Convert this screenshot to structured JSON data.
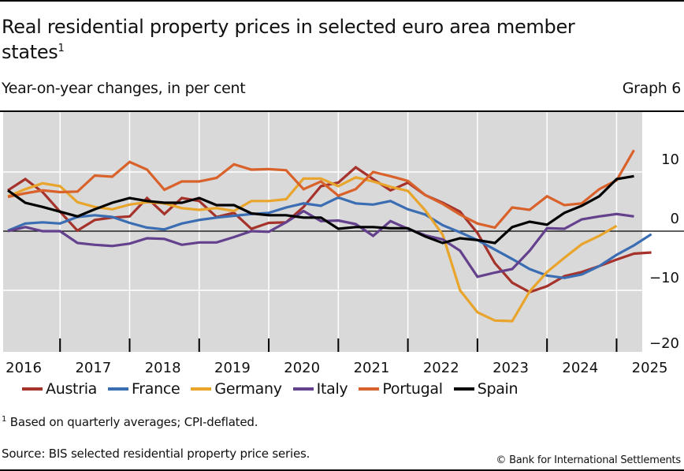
{
  "header": {
    "title": "Real residential property prices in selected euro area member states",
    "title_footnote_marker": "1",
    "subtitle": "Year-on-year changes, in per cent",
    "graph_number": "Graph 6"
  },
  "footer": {
    "footnote_marker": "1",
    "footnote": "Based on quarterly averages; CPI-deflated.",
    "source": "Source: BIS selected residential property price series.",
    "copyright": "© Bank for International Settlements"
  },
  "chart_data": {
    "type": "line",
    "title": "Real residential property prices in selected euro area member states",
    "ylabel": "Year-on-year changes, in per cent",
    "xlabel": "",
    "frequency": "quarterly",
    "x_start": "2016-Q1",
    "x_end": "2025-Q1",
    "x_tick_labels": [
      "2016",
      "2017",
      "2018",
      "2019",
      "2020",
      "2021",
      "2022",
      "2023",
      "2024",
      "2025"
    ],
    "xlim": [
      2016,
      2025.5
    ],
    "y_ticks": [
      10,
      0,
      -10,
      -20
    ],
    "y_tick_labels": [
      "10",
      "0",
      "−10",
      "−20"
    ],
    "ylim": [
      -20,
      20
    ],
    "y_axis_side": "right",
    "grid": true,
    "zero_line": true,
    "background": "#d9d9d9",
    "legend_position": "bottom",
    "series": [
      {
        "name": "Austria",
        "color": "#a5332b",
        "values": [
          6.9,
          8.8,
          6.6,
          3.3,
          0.1,
          1.9,
          2.3,
          2.5,
          5.6,
          2.9,
          5.6,
          5.1,
          2.4,
          3.1,
          0.4,
          1.4,
          1.5,
          4.1,
          7.6,
          8.2,
          10.8,
          8.8,
          6.9,
          8.2,
          6.1,
          4.8,
          3.3,
          -0.3,
          -5.4,
          -8.7,
          -10.3,
          -9.3,
          -7.6,
          -6.9,
          -5.9,
          -4.8,
          -3.8,
          -3.6
        ]
      },
      {
        "name": "France",
        "color": "#3b6db3",
        "values": [
          0.1,
          1.3,
          1.5,
          1.3,
          2.4,
          2.7,
          2.4,
          1.4,
          0.6,
          0.3,
          1.3,
          1.9,
          2.3,
          2.6,
          2.9,
          3.1,
          4.0,
          4.7,
          4.3,
          5.7,
          4.7,
          4.5,
          5.1,
          3.7,
          2.8,
          1.0,
          -0.2,
          -1.5,
          -3.1,
          -4.7,
          -6.4,
          -7.5,
          -7.9,
          -7.3,
          -5.9,
          -4.0,
          -2.4,
          -0.5
        ]
      },
      {
        "name": "Germany",
        "color": "#e8a42b",
        "values": [
          5.9,
          7.1,
          8.1,
          7.6,
          4.9,
          4.1,
          3.7,
          4.5,
          4.9,
          4.7,
          3.9,
          3.6,
          3.9,
          3.4,
          5.1,
          5.1,
          5.4,
          8.9,
          8.9,
          7.6,
          9.1,
          8.4,
          7.5,
          6.8,
          3.5,
          -0.6,
          -10.0,
          -13.7,
          -15.1,
          -15.2,
          -10.2,
          -6.9,
          -4.5,
          -2.2,
          -0.8,
          0.9
        ]
      },
      {
        "name": "Italy",
        "color": "#64418d",
        "values": [
          0.0,
          0.7,
          0.0,
          0.0,
          -2.0,
          -2.3,
          -2.5,
          -2.1,
          -1.2,
          -1.3,
          -2.3,
          -1.9,
          -1.9,
          -1.0,
          0.0,
          -0.1,
          1.5,
          3.4,
          1.7,
          1.8,
          1.2,
          -0.8,
          1.7,
          0.4,
          -0.7,
          -1.4,
          -3.3,
          -7.7,
          -7.0,
          -6.4,
          -3.3,
          0.5,
          0.4,
          2.0,
          2.5,
          2.9,
          2.5
        ]
      },
      {
        "name": "Portugal",
        "color": "#d9622b",
        "values": [
          5.8,
          6.4,
          6.9,
          6.6,
          6.7,
          9.4,
          9.2,
          11.7,
          10.4,
          7.0,
          8.4,
          8.4,
          9.0,
          11.3,
          10.4,
          10.5,
          10.3,
          7.1,
          8.4,
          6.0,
          7.1,
          10.0,
          9.3,
          8.5,
          6.1,
          4.6,
          2.8,
          1.3,
          0.6,
          4.0,
          3.6,
          5.9,
          4.4,
          4.7,
          7.1,
          8.6,
          13.7
        ]
      },
      {
        "name": "Spain",
        "color": "#000000",
        "values": [
          6.9,
          4.8,
          4.1,
          3.3,
          2.5,
          3.7,
          4.8,
          5.6,
          5.1,
          4.8,
          4.8,
          5.6,
          4.4,
          4.4,
          3.0,
          2.7,
          2.7,
          2.3,
          2.3,
          0.4,
          0.7,
          0.7,
          0.5,
          0.5,
          -0.9,
          -2.0,
          -1.2,
          -1.5,
          -2.0,
          0.7,
          1.6,
          1.1,
          3.1,
          4.3,
          5.9,
          8.8,
          9.3
        ]
      }
    ]
  }
}
